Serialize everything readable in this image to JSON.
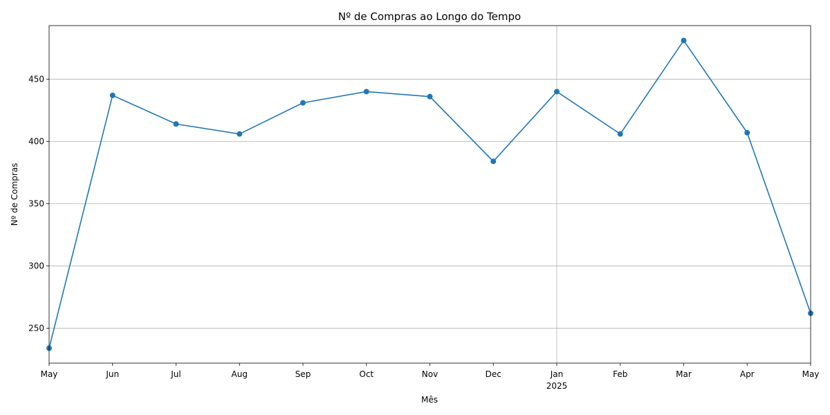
{
  "chart_data": {
    "type": "line",
    "title": "Nº de Compras ao Longo do Tempo",
    "xlabel": "Mês",
    "ylabel": "Nº de Compras",
    "x": [
      "2024-05",
      "2024-06",
      "2024-07",
      "2024-08",
      "2024-09",
      "2024-10",
      "2024-11",
      "2024-12",
      "2025-01",
      "2025-02",
      "2025-03",
      "2025-04",
      "2025-05"
    ],
    "x_tick_labels": [
      "May",
      "Jun",
      "Jul",
      "Aug",
      "Sep",
      "Oct",
      "Nov",
      "Dec",
      "Jan",
      "Feb",
      "Mar",
      "Apr",
      "May"
    ],
    "x_tick_year_label": {
      "index": 8,
      "text": "2025"
    },
    "values": [
      234,
      437,
      414,
      406,
      431,
      440,
      436,
      384,
      440,
      406,
      481,
      407,
      262
    ],
    "y_ticks": [
      250,
      300,
      350,
      400,
      450
    ],
    "ylim": [
      222,
      493
    ],
    "grid": {
      "horizontal": true,
      "vertical_at_index": [
        8
      ]
    },
    "line_color": "#1f77b4",
    "marker": "circle"
  }
}
